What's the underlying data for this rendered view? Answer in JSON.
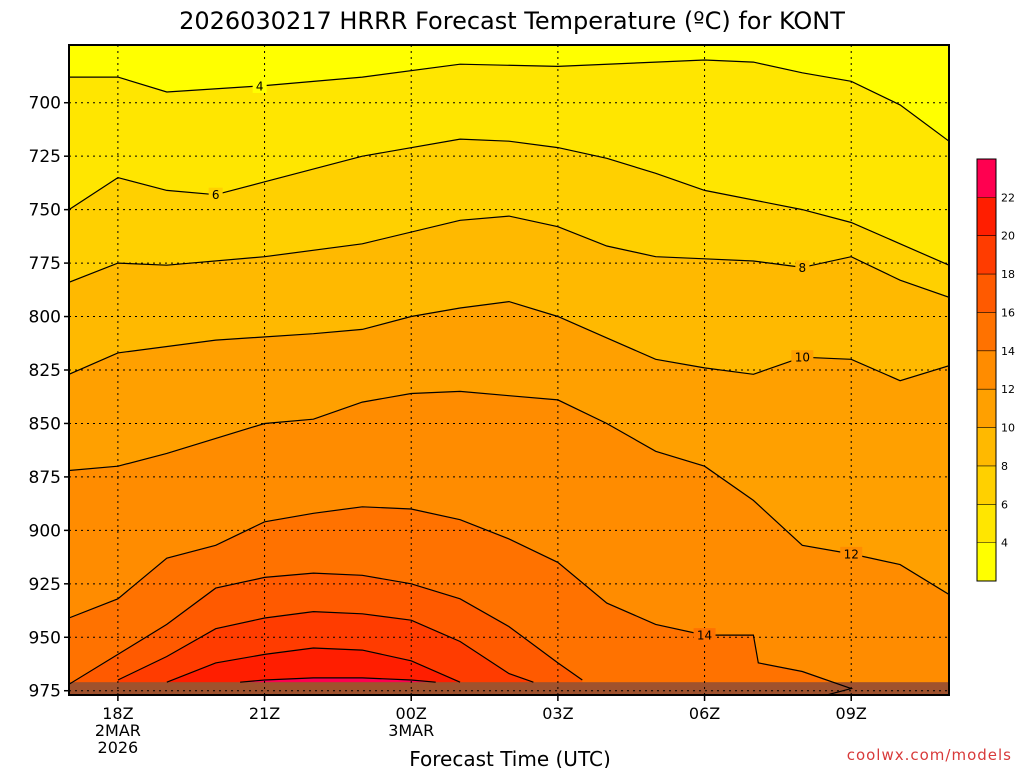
{
  "chart_data": {
    "type": "heatmap",
    "subtype": "filled-contour",
    "title": "2026030217 HRRR Forecast Temperature (ºC) for KONT",
    "xlabel": "Forecast Time (UTC)",
    "ylabel": "",
    "y_scale": "pressure (hPa), increasing downward",
    "ylim": [
      977,
      673
    ],
    "xlim": [
      -1,
      17
    ],
    "y_ticks": [
      700,
      725,
      750,
      775,
      800,
      825,
      850,
      875,
      900,
      925,
      950,
      975
    ],
    "x_ticks": [
      {
        "x": 0,
        "lines": [
          "18Z",
          "2MAR",
          "2026"
        ]
      },
      {
        "x": 3,
        "lines": [
          "21Z"
        ]
      },
      {
        "x": 6,
        "lines": [
          "00Z",
          "3MAR"
        ]
      },
      {
        "x": 9,
        "lines": [
          "03Z"
        ]
      },
      {
        "x": 12,
        "lines": [
          "06Z"
        ]
      },
      {
        "x": 15,
        "lines": [
          "09Z"
        ]
      }
    ],
    "grid": true,
    "ground_color": "#a0522d",
    "surface_pressure": 971,
    "colorbar": {
      "levels": [
        2,
        4,
        6,
        8,
        10,
        12,
        14,
        16,
        18,
        20,
        22,
        24
      ],
      "labels": [
        "4",
        "6",
        "8",
        "10",
        "12",
        "14",
        "16",
        "18",
        "20",
        "22"
      ],
      "colors": [
        "#ffff00",
        "#ffe600",
        "#ffd000",
        "#ffb900",
        "#ffa000",
        "#ff8c00",
        "#ff7200",
        "#ff5a00",
        "#ff3c00",
        "#ff1e00",
        "#ff0050"
      ]
    },
    "contours": [
      {
        "level": 4,
        "label": "4",
        "label_at": 2.9,
        "points": [
          [
            -1,
            688
          ],
          [
            0,
            688
          ],
          [
            1,
            695
          ],
          [
            3,
            692
          ],
          [
            5,
            688
          ],
          [
            7,
            682
          ],
          [
            9,
            683
          ],
          [
            11,
            681
          ],
          [
            12,
            680
          ],
          [
            13,
            681
          ],
          [
            14,
            686
          ],
          [
            15,
            690
          ],
          [
            16,
            701
          ],
          [
            17,
            718
          ]
        ]
      },
      {
        "level": 6,
        "label": "6",
        "label_at": 2.0,
        "points": [
          [
            -1,
            750
          ],
          [
            0,
            735
          ],
          [
            1,
            741
          ],
          [
            2,
            743
          ],
          [
            3,
            737
          ],
          [
            5,
            725
          ],
          [
            7,
            717
          ],
          [
            8,
            718
          ],
          [
            9,
            721
          ],
          [
            10,
            726
          ],
          [
            11,
            733
          ],
          [
            12,
            741
          ],
          [
            14,
            750
          ],
          [
            15,
            756
          ],
          [
            16,
            766
          ],
          [
            17,
            776
          ]
        ]
      },
      {
        "level": 8,
        "label": "8",
        "label_at": 14.0,
        "points": [
          [
            -1,
            784
          ],
          [
            0,
            775
          ],
          [
            1,
            776
          ],
          [
            3,
            772
          ],
          [
            5,
            766
          ],
          [
            7,
            755
          ],
          [
            8,
            753
          ],
          [
            9,
            758
          ],
          [
            10,
            767
          ],
          [
            11,
            772
          ],
          [
            12,
            773
          ],
          [
            13,
            774
          ],
          [
            14,
            777
          ],
          [
            15,
            772
          ],
          [
            16,
            783
          ],
          [
            17,
            791
          ]
        ]
      },
      {
        "level": 10,
        "label": "10",
        "label_at": 14.0,
        "points": [
          [
            -1,
            827
          ],
          [
            0,
            817
          ],
          [
            2,
            811
          ],
          [
            4,
            808
          ],
          [
            5,
            806
          ],
          [
            6,
            800
          ],
          [
            7,
            796
          ],
          [
            8,
            793
          ],
          [
            9,
            800
          ],
          [
            10,
            810
          ],
          [
            11,
            820
          ],
          [
            12,
            824
          ],
          [
            13,
            827
          ],
          [
            14,
            819
          ],
          [
            15,
            820
          ],
          [
            16,
            830
          ],
          [
            17,
            823
          ]
        ]
      },
      {
        "level": 12,
        "label": "12",
        "label_at": 15.0,
        "points": [
          [
            -1,
            872
          ],
          [
            0,
            870
          ],
          [
            1,
            864
          ],
          [
            2,
            857
          ],
          [
            3,
            850
          ],
          [
            4,
            848
          ],
          [
            5,
            840
          ],
          [
            6,
            836
          ],
          [
            7,
            835
          ],
          [
            8,
            837
          ],
          [
            9,
            839
          ],
          [
            10,
            850
          ],
          [
            11,
            863
          ],
          [
            12,
            870
          ],
          [
            13,
            886
          ],
          [
            14,
            907
          ],
          [
            15,
            911
          ],
          [
            16,
            916
          ],
          [
            17,
            930
          ]
        ]
      },
      {
        "level": 14,
        "label": "14",
        "label_at": 12.0,
        "points": [
          [
            -1,
            941
          ],
          [
            0,
            932
          ],
          [
            1,
            913
          ],
          [
            2,
            907
          ],
          [
            3,
            896
          ],
          [
            4,
            892
          ],
          [
            5,
            889
          ],
          [
            6,
            890
          ],
          [
            7,
            895
          ],
          [
            8,
            904
          ],
          [
            9,
            915
          ],
          [
            10,
            934
          ],
          [
            11,
            944
          ],
          [
            12,
            949
          ],
          [
            13,
            949
          ],
          [
            13.1,
            962
          ],
          [
            14,
            966
          ],
          [
            15,
            974
          ],
          [
            14.5,
            977
          ]
        ]
      },
      {
        "level": 16,
        "label": "",
        "label_at": null,
        "points": [
          [
            -1,
            972
          ],
          [
            0,
            958
          ],
          [
            1,
            944
          ],
          [
            2,
            927
          ],
          [
            3,
            922
          ],
          [
            4,
            920
          ],
          [
            5,
            921
          ],
          [
            6,
            925
          ],
          [
            7,
            932
          ],
          [
            8,
            945
          ],
          [
            9,
            962
          ],
          [
            9.5,
            970
          ]
        ]
      },
      {
        "level": 18,
        "label": "",
        "label_at": null,
        "points": [
          [
            0,
            970
          ],
          [
            1,
            959
          ],
          [
            2,
            946
          ],
          [
            3,
            941
          ],
          [
            4,
            938
          ],
          [
            5,
            939
          ],
          [
            6,
            942
          ],
          [
            7,
            952
          ],
          [
            8,
            967
          ],
          [
            8.5,
            971
          ]
        ]
      },
      {
        "level": 20,
        "label": "",
        "label_at": null,
        "points": [
          [
            1,
            971
          ],
          [
            2,
            962
          ],
          [
            3,
            958
          ],
          [
            4,
            955
          ],
          [
            5,
            956
          ],
          [
            6,
            961
          ],
          [
            7,
            971
          ]
        ]
      },
      {
        "level": 22,
        "label": "",
        "label_at": null,
        "points": [
          [
            2.5,
            971
          ],
          [
            3,
            970
          ],
          [
            4,
            969
          ],
          [
            5,
            969
          ],
          [
            6,
            970
          ],
          [
            6.5,
            971
          ]
        ]
      }
    ]
  },
  "credit": "coolwx.com/models"
}
